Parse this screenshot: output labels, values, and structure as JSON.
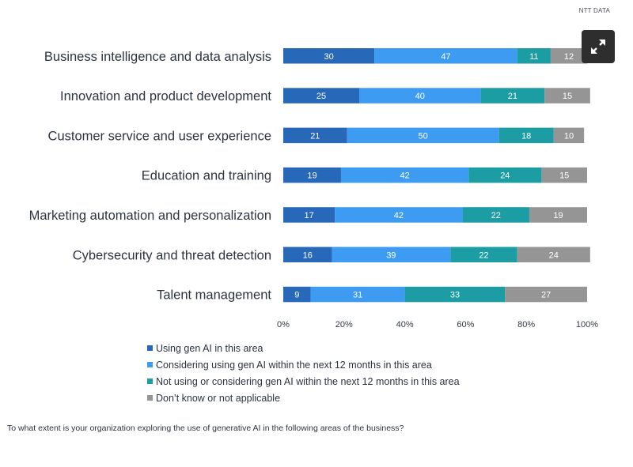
{
  "source": "NTT DATA",
  "expand_button": {
    "icon": "expand-arrows-icon",
    "label": "Expand"
  },
  "question": "To what extent is your organization exploring the use of generative AI in the following areas of the business?",
  "colors": {
    "using": "#2868b8",
    "considering": "#3d9cf2",
    "not_using": "#1c9da3",
    "dont_know": "#959595"
  },
  "chart_data": {
    "type": "bar",
    "orientation": "horizontal",
    "stacked": true,
    "title": "",
    "xlabel": "",
    "ylabel": "",
    "xlim": [
      0,
      100
    ],
    "x_ticks": [
      "0%",
      "20%",
      "40%",
      "60%",
      "80%",
      "100%"
    ],
    "x_tick_values": [
      0,
      20,
      40,
      60,
      80,
      100
    ],
    "grid": false,
    "legend_position": "bottom",
    "categories": [
      "Business intelligence and data analysis",
      "Innovation and product development",
      "Customer service and user experience",
      "Education and training",
      "Marketing automation and personalization",
      "Cybersecurity and threat detection",
      "Talent management"
    ],
    "series": [
      {
        "name": "Using gen AI in this area",
        "color_key": "using",
        "values": [
          30,
          25,
          21,
          19,
          17,
          16,
          9
        ]
      },
      {
        "name": "Considering using gen AI within the next 12 months in this area",
        "color_key": "considering",
        "values": [
          47,
          40,
          50,
          42,
          42,
          39,
          31
        ]
      },
      {
        "name": "Not using or considering gen AI within the next 12 months in this area",
        "color_key": "not_using",
        "values": [
          11,
          21,
          18,
          24,
          22,
          22,
          33
        ]
      },
      {
        "name": "Don’t know or not applicable",
        "color_key": "dont_know",
        "values": [
          12,
          15,
          10,
          15,
          19,
          24,
          27
        ]
      }
    ]
  }
}
